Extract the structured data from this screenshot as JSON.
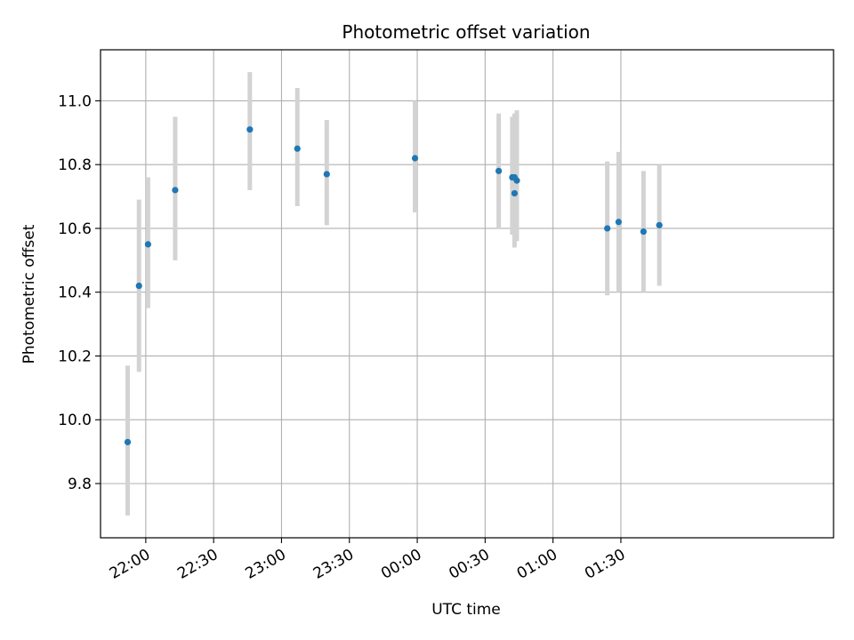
{
  "chart_data": {
    "type": "scatter",
    "title": "Photometric offset variation",
    "xlabel": "UTC time",
    "ylabel": "Photometric offset",
    "x_is_time": true,
    "x_range": [
      "21:40",
      "03:04"
    ],
    "ylim": [
      9.63,
      11.16
    ],
    "grid": true,
    "x_ticks": [
      "22:00",
      "22:30",
      "23:00",
      "23:30",
      "00:00",
      "00:30",
      "01:00",
      "01:30"
    ],
    "y_ticks": [
      "9.8",
      "10.0",
      "10.2",
      "10.4",
      "10.6",
      "10.8",
      "11.0"
    ],
    "colors": {
      "point": "#1f77b4",
      "errorbar": "#d3d3d3",
      "grid": "#b0b0b0"
    },
    "points": [
      {
        "x": "21:52",
        "y": 9.93,
        "ylo": 9.7,
        "yhi": 10.17
      },
      {
        "x": "21:57",
        "y": 10.42,
        "ylo": 10.15,
        "yhi": 10.69
      },
      {
        "x": "22:01",
        "y": 10.55,
        "ylo": 10.35,
        "yhi": 10.76
      },
      {
        "x": "22:13",
        "y": 10.72,
        "ylo": 10.5,
        "yhi": 10.95
      },
      {
        "x": "22:46",
        "y": 10.91,
        "ylo": 10.72,
        "yhi": 11.09
      },
      {
        "x": "23:07",
        "y": 10.85,
        "ylo": 10.67,
        "yhi": 11.04
      },
      {
        "x": "23:20",
        "y": 10.77,
        "ylo": 10.61,
        "yhi": 10.94
      },
      {
        "x": "23:59",
        "y": 10.82,
        "ylo": 10.65,
        "yhi": 11.0
      },
      {
        "x": "00:36",
        "y": 10.78,
        "ylo": 10.6,
        "yhi": 10.96
      },
      {
        "x": "00:42",
        "y": 10.76,
        "ylo": 10.58,
        "yhi": 10.95
      },
      {
        "x": "00:43",
        "y": 10.76,
        "ylo": 10.57,
        "yhi": 10.96
      },
      {
        "x": "00:43",
        "y": 10.71,
        "ylo": 10.54,
        "yhi": 10.89
      },
      {
        "x": "00:44",
        "y": 10.75,
        "ylo": 10.56,
        "yhi": 10.97
      },
      {
        "x": "01:24",
        "y": 10.6,
        "ylo": 10.39,
        "yhi": 10.81
      },
      {
        "x": "01:29",
        "y": 10.62,
        "ylo": 10.4,
        "yhi": 10.84
      },
      {
        "x": "01:40",
        "y": 10.59,
        "ylo": 10.4,
        "yhi": 10.78
      },
      {
        "x": "01:47",
        "y": 10.61,
        "ylo": 10.42,
        "yhi": 10.8
      }
    ]
  }
}
